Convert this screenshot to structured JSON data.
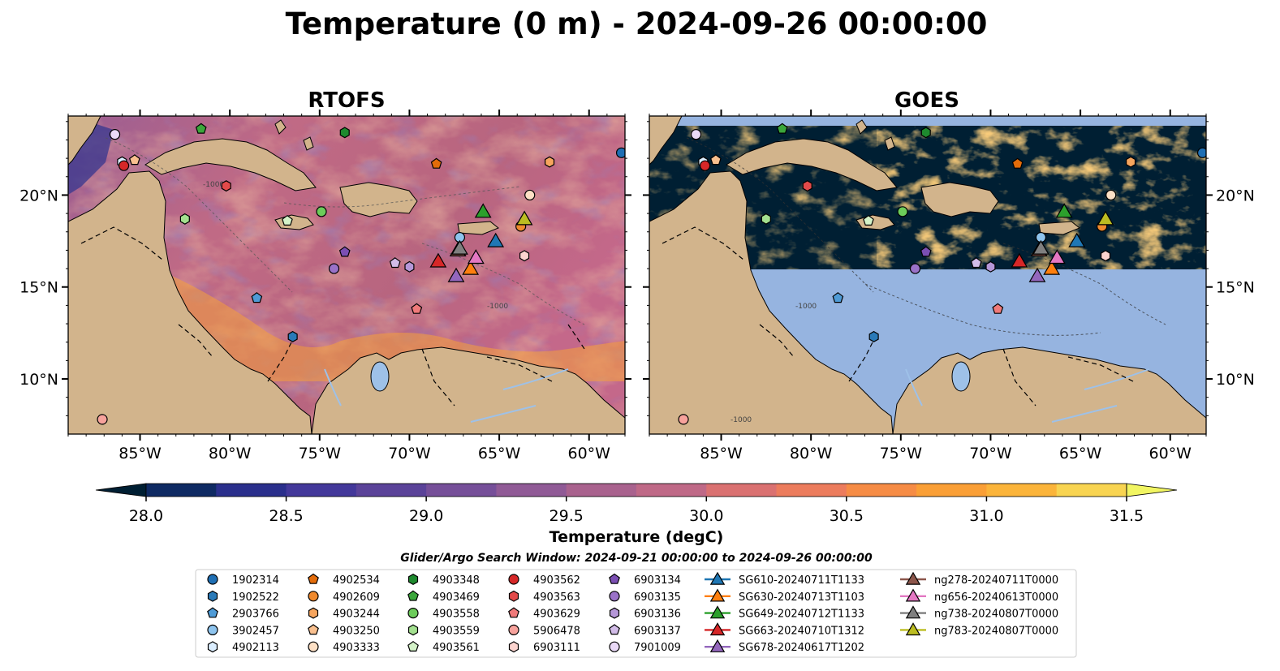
{
  "title": "Temperature (0 m) - 2024-09-26 00:00:00",
  "panels": [
    {
      "id": "rtofs",
      "title": "RTOFS"
    },
    {
      "id": "goes",
      "title": "GOES"
    }
  ],
  "axes": {
    "lon_ticks": [
      {
        "v": -85,
        "label": "85°W"
      },
      {
        "v": -80,
        "label": "80°W"
      },
      {
        "v": -75,
        "label": "75°W"
      },
      {
        "v": -70,
        "label": "70°W"
      },
      {
        "v": -65,
        "label": "65°W"
      },
      {
        "v": -60,
        "label": "60°W"
      }
    ],
    "lat_ticks": [
      {
        "v": 10,
        "label": "10°N"
      },
      {
        "v": 15,
        "label": "15°N"
      },
      {
        "v": 20,
        "label": "20°N"
      }
    ],
    "lon_range": [
      -89,
      -58
    ],
    "lat_range": [
      7,
      24.3
    ]
  },
  "colorbar": {
    "label": "Temperature (degC)",
    "min": 28.0,
    "max": 31.5,
    "step": 0.25,
    "extend": "both",
    "ticks": [
      "28.0",
      "28.5",
      "29.0",
      "29.5",
      "30.0",
      "30.5",
      "31.0",
      "31.5"
    ],
    "colors": [
      "#001f33",
      "#0f2a63",
      "#2a2f8c",
      "#43389a",
      "#5b4399",
      "#764f99",
      "#905a96",
      "#a9628e",
      "#bf6987",
      "#da7171",
      "#ec7c5d",
      "#f68c45",
      "#fa9f36",
      "#fbb43a",
      "#f8d451",
      "#f1f562"
    ]
  },
  "search_window": "Glider/Argo Search Window: 2024-09-21 00:00:00 to 2024-09-26 00:00:00",
  "contour_label": "-1000",
  "colors": {
    "land": "#d2b48c",
    "ocean_rtofs": "#c06a85",
    "ocean_goes_nodata": "#96b4e0",
    "goes_cloud": "#001f33",
    "lake": "#9ec1e8"
  },
  "markers": [
    {
      "id": "1902314",
      "shape": "circle",
      "color": "#1f6fb4",
      "lon": -58.2,
      "lat": 22.3
    },
    {
      "id": "1902522",
      "shape": "hexagon",
      "color": "#2a7ab8",
      "lon": -76.5,
      "lat": 12.3
    },
    {
      "id": "2903766",
      "shape": "pentagon",
      "color": "#4f9bd6",
      "lon": -78.5,
      "lat": 14.4
    },
    {
      "id": "3902457",
      "shape": "circle",
      "color": "#8ec4ee",
      "lon": -67.2,
      "lat": 17.7
    },
    {
      "id": "4902113",
      "shape": "hexagon",
      "color": "#dbeeff",
      "lon": -86,
      "lat": 21.8
    },
    {
      "id": "4902534",
      "shape": "pentagon",
      "color": "#e36c0a",
      "lon": -68.5,
      "lat": 21.7
    },
    {
      "id": "4902609",
      "shape": "circle",
      "color": "#f08a2e",
      "lon": -63.8,
      "lat": 18.3
    },
    {
      "id": "4903244",
      "shape": "hexagon",
      "color": "#f6a55e",
      "lon": -62.2,
      "lat": 21.8
    },
    {
      "id": "4903250",
      "shape": "pentagon",
      "color": "#f9c08f",
      "lon": -85.3,
      "lat": 21.9
    },
    {
      "id": "4903333",
      "shape": "circle",
      "color": "#fde0c5",
      "lon": -63.3,
      "lat": 20.0
    },
    {
      "id": "4903348",
      "shape": "hexagon",
      "color": "#1e8a2e",
      "lon": -73.6,
      "lat": 23.4
    },
    {
      "id": "4903469",
      "shape": "pentagon",
      "color": "#3ba63b",
      "lon": -81.6,
      "lat": 23.6
    },
    {
      "id": "4903558",
      "shape": "circle",
      "color": "#6ccc5a",
      "lon": -74.9,
      "lat": 19.1
    },
    {
      "id": "4903559",
      "shape": "hexagon",
      "color": "#a3e08f",
      "lon": -82.5,
      "lat": 18.7
    },
    {
      "id": "4903561",
      "shape": "pentagon",
      "color": "#d4f2c8",
      "lon": -76.8,
      "lat": 18.6
    },
    {
      "id": "4903562",
      "shape": "circle",
      "color": "#d62728",
      "lon": -85.9,
      "lat": 21.6
    },
    {
      "id": "4903563",
      "shape": "hexagon",
      "color": "#e34a4a",
      "lon": -80.2,
      "lat": 20.5
    },
    {
      "id": "4903629",
      "shape": "pentagon",
      "color": "#f07a7a",
      "lon": -69.6,
      "lat": 13.8
    },
    {
      "id": "5906478",
      "shape": "circle",
      "color": "#f7a29c",
      "lon": -87.1,
      "lat": 7.8
    },
    {
      "id": "6903111",
      "shape": "hexagon",
      "color": "#fcd4cf",
      "lon": -63.6,
      "lat": 16.7
    },
    {
      "id": "6903134",
      "shape": "pentagon",
      "color": "#7b4fb3",
      "lon": -73.6,
      "lat": 16.9
    },
    {
      "id": "6903135",
      "shape": "circle",
      "color": "#9a72c8",
      "lon": -74.2,
      "lat": 16.0
    },
    {
      "id": "6903136",
      "shape": "hexagon",
      "color": "#b597d8",
      "lon": -70.0,
      "lat": 16.1
    },
    {
      "id": "6903137",
      "shape": "pentagon",
      "color": "#d2bce8",
      "lon": -70.8,
      "lat": 16.3
    },
    {
      "id": "7901009",
      "shape": "circle",
      "color": "#ead9f7",
      "lon": -86.4,
      "lat": 23.3
    }
  ],
  "gliders": [
    {
      "id": "SG610-20240711T1133",
      "color": "#1f77b4",
      "lon": -65.2,
      "lat": 17.5
    },
    {
      "id": "SG630-20240713T1103",
      "color": "#ff7f0e",
      "lon": -66.6,
      "lat": 16.0
    },
    {
      "id": "SG649-20240712T1133",
      "color": "#2ca02c",
      "lon": -65.9,
      "lat": 19.1
    },
    {
      "id": "SG663-20240710T1312",
      "color": "#d62728",
      "lon": -68.4,
      "lat": 16.4
    },
    {
      "id": "SG678-20240617T1202",
      "color": "#9467bd",
      "lon": -67.4,
      "lat": 15.6
    },
    {
      "id": "ng278-20240711T0000",
      "color": "#8c564b",
      "lon": -67.3,
      "lat": 17.0
    },
    {
      "id": "ng656-20240613T0000",
      "color": "#e377c2",
      "lon": -66.3,
      "lat": 16.6
    },
    {
      "id": "ng738-20240807T0000",
      "color": "#7f7f7f",
      "lon": -67.2,
      "lat": 17.1
    },
    {
      "id": "ng783-20240807T0000",
      "color": "#bcbd22",
      "lon": -63.6,
      "lat": 18.7
    }
  ]
}
